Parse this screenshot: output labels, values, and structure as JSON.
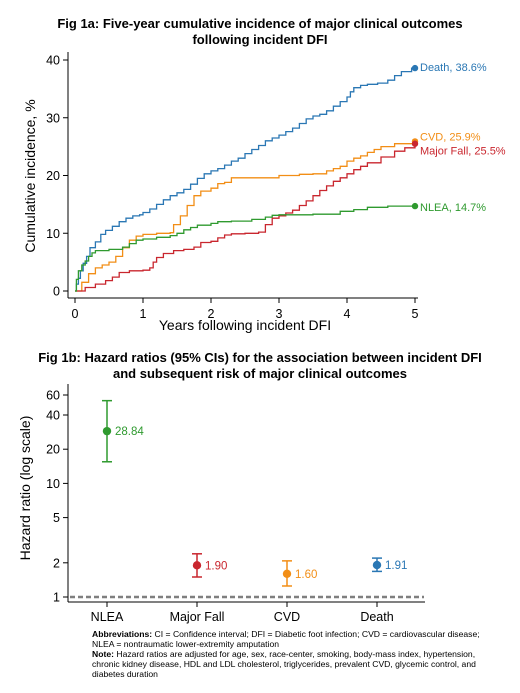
{
  "colors": {
    "Death": "#2a77b4",
    "CVD": "#f28e16",
    "Major Fall": "#c9262e",
    "NLEA": "#2f9a2f",
    "reference_line": "#7f7f7f"
  },
  "chart_data": [
    {
      "type": "line",
      "title_line1": "Fig 1a: Five-year cumulative incidence of major clinical outcomes",
      "title_line2": "following incident DFI",
      "xlabel": "Years following incident DFI",
      "ylabel": "Cumulative incidence, %",
      "xlim": [
        0,
        5
      ],
      "ylim": [
        0,
        40
      ],
      "x_ticks": [
        "0",
        "1",
        "2",
        "3",
        "4",
        "5"
      ],
      "y_ticks": [
        "0",
        "10",
        "20",
        "30",
        "40"
      ],
      "grid": false,
      "series": [
        {
          "name": "Death",
          "end_label": "Death, 38.6%",
          "points": [
            [
              0,
              0
            ],
            [
              0.02,
              1.2
            ],
            [
              0.05,
              2.2
            ],
            [
              0.08,
              3.5
            ],
            [
              0.12,
              4.8
            ],
            [
              0.17,
              6
            ],
            [
              0.22,
              7.5
            ],
            [
              0.3,
              8.5
            ],
            [
              0.38,
              9.8
            ],
            [
              0.45,
              10.5
            ],
            [
              0.55,
              11.2
            ],
            [
              0.65,
              12
            ],
            [
              0.75,
              12.6
            ],
            [
              0.85,
              13
            ],
            [
              0.95,
              13.2
            ],
            [
              1.0,
              13.6
            ],
            [
              1.1,
              14.2
            ],
            [
              1.2,
              15
            ],
            [
              1.3,
              15.8
            ],
            [
              1.4,
              16.5
            ],
            [
              1.5,
              17
            ],
            [
              1.6,
              17.6
            ],
            [
              1.7,
              18.5
            ],
            [
              1.8,
              19.5
            ],
            [
              1.9,
              20.3
            ],
            [
              2.0,
              20.8
            ],
            [
              2.1,
              21.2
            ],
            [
              2.2,
              21.8
            ],
            [
              2.3,
              22.5
            ],
            [
              2.4,
              23
            ],
            [
              2.5,
              23.8
            ],
            [
              2.6,
              24.5
            ],
            [
              2.7,
              25.2
            ],
            [
              2.8,
              26
            ],
            [
              2.9,
              26.5
            ],
            [
              3.0,
              27
            ],
            [
              3.1,
              27.6
            ],
            [
              3.2,
              28.2
            ],
            [
              3.3,
              29
            ],
            [
              3.4,
              29.8
            ],
            [
              3.5,
              30.3
            ],
            [
              3.6,
              30.6
            ],
            [
              3.7,
              31.2
            ],
            [
              3.8,
              32
            ],
            [
              3.9,
              32.8
            ],
            [
              4.0,
              33.6
            ],
            [
              4.05,
              34.5
            ],
            [
              4.1,
              35.2
            ],
            [
              4.2,
              35.6
            ],
            [
              4.3,
              35.8
            ],
            [
              4.45,
              36
            ],
            [
              4.6,
              36.5
            ],
            [
              4.7,
              37.3
            ],
            [
              4.8,
              38
            ],
            [
              4.95,
              38.6
            ],
            [
              5.0,
              38.6
            ]
          ]
        },
        {
          "name": "CVD",
          "end_label": "CVD, 25.9%",
          "points": [
            [
              0,
              0
            ],
            [
              0.1,
              1.5
            ],
            [
              0.2,
              3
            ],
            [
              0.3,
              4
            ],
            [
              0.4,
              4.5
            ],
            [
              0.5,
              5
            ],
            [
              0.6,
              6
            ],
            [
              0.7,
              7.5
            ],
            [
              0.8,
              8.8
            ],
            [
              0.9,
              9.5
            ],
            [
              1.0,
              9.8
            ],
            [
              1.2,
              10
            ],
            [
              1.4,
              10.1
            ],
            [
              1.45,
              11.5
            ],
            [
              1.55,
              13
            ],
            [
              1.65,
              14.8
            ],
            [
              1.75,
              16.5
            ],
            [
              1.85,
              17.3
            ],
            [
              2.0,
              17.8
            ],
            [
              2.1,
              18.6
            ],
            [
              2.2,
              18.8
            ],
            [
              2.3,
              19.6
            ],
            [
              2.5,
              19.6
            ],
            [
              2.9,
              19.6
            ],
            [
              3.0,
              20
            ],
            [
              3.3,
              20.2
            ],
            [
              3.5,
              20.3
            ],
            [
              3.7,
              20.8
            ],
            [
              3.8,
              21.2
            ],
            [
              3.9,
              21.6
            ],
            [
              4.0,
              22.5
            ],
            [
              4.1,
              23
            ],
            [
              4.2,
              23.4
            ],
            [
              4.3,
              24
            ],
            [
              4.4,
              24.5
            ],
            [
              4.5,
              25
            ],
            [
              4.7,
              25.5
            ],
            [
              5.0,
              25.9
            ]
          ]
        },
        {
          "name": "Major Fall",
          "end_label": "Major Fall, 25.5%",
          "points": [
            [
              0,
              0
            ],
            [
              0.15,
              0.6
            ],
            [
              0.3,
              1.2
            ],
            [
              0.45,
              1.8
            ],
            [
              0.55,
              2.4
            ],
            [
              0.65,
              3.2
            ],
            [
              0.8,
              3.5
            ],
            [
              1.0,
              3.6
            ],
            [
              1.1,
              4
            ],
            [
              1.15,
              5
            ],
            [
              1.2,
              5.8
            ],
            [
              1.3,
              6.5
            ],
            [
              1.45,
              7
            ],
            [
              1.6,
              7.2
            ],
            [
              1.75,
              7.6
            ],
            [
              1.85,
              8.4
            ],
            [
              2.0,
              8.6
            ],
            [
              2.1,
              9.2
            ],
            [
              2.2,
              9.7
            ],
            [
              2.3,
              9.9
            ],
            [
              2.5,
              10
            ],
            [
              2.7,
              10.2
            ],
            [
              2.8,
              11.5
            ],
            [
              2.9,
              12.6
            ],
            [
              3.0,
              13
            ],
            [
              3.1,
              13.5
            ],
            [
              3.2,
              14
            ],
            [
              3.3,
              14.8
            ],
            [
              3.4,
              15.6
            ],
            [
              3.5,
              16.5
            ],
            [
              3.6,
              17.4
            ],
            [
              3.7,
              18.2
            ],
            [
              3.8,
              19
            ],
            [
              3.9,
              19.6
            ],
            [
              4.0,
              20.3
            ],
            [
              4.1,
              21
            ],
            [
              4.2,
              21.6
            ],
            [
              4.3,
              22.2
            ],
            [
              4.5,
              23.2
            ],
            [
              4.7,
              24.2
            ],
            [
              4.85,
              24.8
            ],
            [
              5.0,
              25.5
            ]
          ]
        },
        {
          "name": "NLEA",
          "end_label": "NLEA, 14.7%",
          "points": [
            [
              0,
              0
            ],
            [
              0.02,
              2
            ],
            [
              0.05,
              3.5
            ],
            [
              0.1,
              4.5
            ],
            [
              0.15,
              5.2
            ],
            [
              0.2,
              6
            ],
            [
              0.25,
              6.6
            ],
            [
              0.3,
              7
            ],
            [
              0.5,
              7.2
            ],
            [
              0.7,
              7.6
            ],
            [
              0.8,
              8.2
            ],
            [
              0.9,
              8.8
            ],
            [
              1.0,
              9
            ],
            [
              1.2,
              9.3
            ],
            [
              1.4,
              9.6
            ],
            [
              1.5,
              10
            ],
            [
              1.6,
              10.6
            ],
            [
              1.7,
              11
            ],
            [
              1.8,
              11.4
            ],
            [
              2.0,
              11.7
            ],
            [
              2.1,
              12
            ],
            [
              2.3,
              12.1
            ],
            [
              2.6,
              12.4
            ],
            [
              2.8,
              12.8
            ],
            [
              2.9,
              13.1
            ],
            [
              3.0,
              13.2
            ],
            [
              3.5,
              13.3
            ],
            [
              3.9,
              13.8
            ],
            [
              4.1,
              14.1
            ],
            [
              4.3,
              14.5
            ],
            [
              4.6,
              14.7
            ],
            [
              5.0,
              14.7
            ]
          ]
        }
      ]
    },
    {
      "type": "scatter",
      "title_line1": "Fig 1b: Hazard ratios (95% CIs) for the association between incident DFI",
      "title_line2": "and subsequent risk of major clinical outcomes",
      "ylabel": "Hazard ratio (log scale)",
      "y_scale": "log",
      "ylim": [
        0.9,
        62
      ],
      "y_ticks": [
        1,
        2,
        5,
        10,
        20,
        40,
        60
      ],
      "y_tick_labels": [
        "1",
        "2",
        "5",
        "10",
        "20",
        "40",
        "60"
      ],
      "reference_line": 1,
      "categories": [
        "NLEA",
        "Major Fall",
        "CVD",
        "Death"
      ],
      "estimates": [
        {
          "category": "NLEA",
          "hr": 28.84,
          "lower": 15.5,
          "upper": 53.5,
          "label": "28.84"
        },
        {
          "category": "Major Fall",
          "hr": 1.9,
          "lower": 1.5,
          "upper": 2.4,
          "label": "1.90"
        },
        {
          "category": "CVD",
          "hr": 1.6,
          "lower": 1.25,
          "upper": 2.08,
          "label": "1.60"
        },
        {
          "category": "Death",
          "hr": 1.91,
          "lower": 1.68,
          "upper": 2.2,
          "label": "1.91"
        }
      ]
    }
  ],
  "footnotes": {
    "abbr_head": "Abbreviations:",
    "abbr_line1": " CI = Confidence interval; DFI = Diabetic foot infection; CVD = cardiovascular disease;",
    "abbr_line2": "NLEA = nontraumatic lower-extremity amputation",
    "note_head": "Note:",
    "note_line1": " Hazard ratios are adjusted for age, sex, race-center, smoking, body-mass index, hypertension,",
    "note_line2": "chronic kidney disease, HDL and LDL cholesterol, triglycerides, prevalent CVD, glycemic control, and",
    "note_line3": "diabetes duration"
  }
}
